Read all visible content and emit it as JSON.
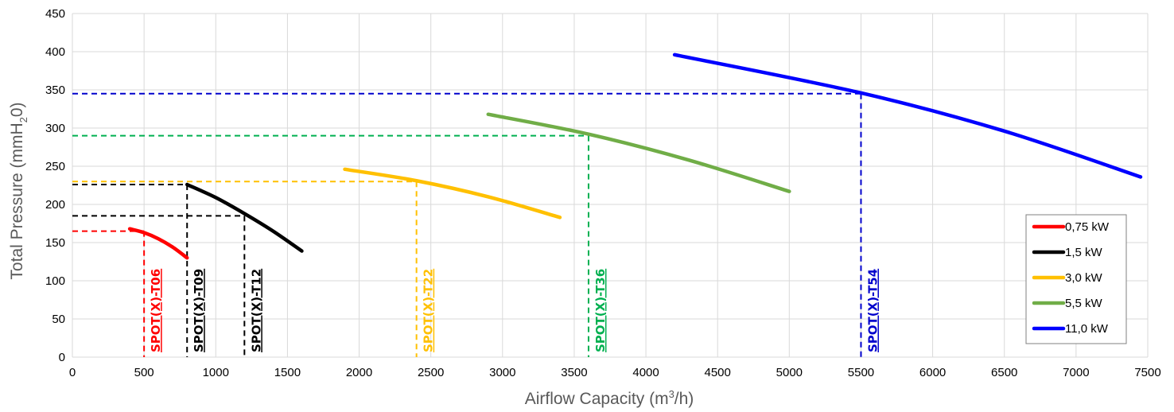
{
  "chart_data": {
    "type": "line",
    "xlabel": {
      "main": "Airflow Capacity (m",
      "sup": "3",
      "tail": "/h)"
    },
    "ylabel": {
      "main": "Total Pressure (mmH",
      "sub": "2",
      "tail": "0)"
    },
    "xlim": [
      0,
      7500
    ],
    "ylim": [
      0,
      450
    ],
    "xticks": [
      0,
      500,
      1000,
      1500,
      2000,
      2500,
      3000,
      3500,
      4000,
      4500,
      5000,
      5500,
      6000,
      6500,
      7000,
      7500
    ],
    "yticks": [
      0,
      50,
      100,
      150,
      200,
      250,
      300,
      350,
      400,
      450
    ],
    "grid": true,
    "legend_position": "right",
    "series": [
      {
        "name": "0,75 kW",
        "color": "#ff0000",
        "x": [
          400,
          500,
          600,
          700,
          800
        ],
        "y": [
          168,
          163,
          155,
          144,
          130
        ]
      },
      {
        "name": "1,5 kW",
        "color": "#000000",
        "x": [
          800,
          1000,
          1200,
          1400,
          1600
        ],
        "y": [
          226,
          209,
          188,
          165,
          139
        ]
      },
      {
        "name": "3,0 kW",
        "color": "#ffc000",
        "x": [
          1900,
          2400,
          2900,
          3400
        ],
        "y": [
          246,
          231,
          210,
          183
        ]
      },
      {
        "name": "5,5 kW",
        "color": "#70ad47",
        "x": [
          2900,
          3600,
          4300,
          5000
        ],
        "y": [
          318,
          292,
          258,
          217
        ]
      },
      {
        "name": "11,0 kW",
        "color": "#0000ff",
        "x": [
          4200,
          5500,
          6500,
          7450
        ],
        "y": [
          396,
          346,
          296,
          236
        ]
      }
    ],
    "annotations": [
      {
        "label": "SPOT(X)-T06",
        "color": "#ff0000",
        "x": 500,
        "y": 165,
        "hx0": 0
      },
      {
        "label": "SPOT(X)-T09",
        "color": "#000000",
        "x": 800,
        "y": 226,
        "hx0": 0
      },
      {
        "label": "SPOT(X)-T12",
        "color": "#000000",
        "x": 1200,
        "y": 185,
        "hx0": 0
      },
      {
        "label": "SPOT(X)-T22",
        "color": "#ffc000",
        "x": 2400,
        "y": 230,
        "hx0": 0
      },
      {
        "label": "SPOT(X)-T36",
        "color": "#00b050",
        "x": 3600,
        "y": 290,
        "hx0": 0
      },
      {
        "label": "SPOT(X)-T54",
        "color": "#0000cc",
        "x": 5500,
        "y": 345,
        "hx0": 0
      }
    ]
  }
}
